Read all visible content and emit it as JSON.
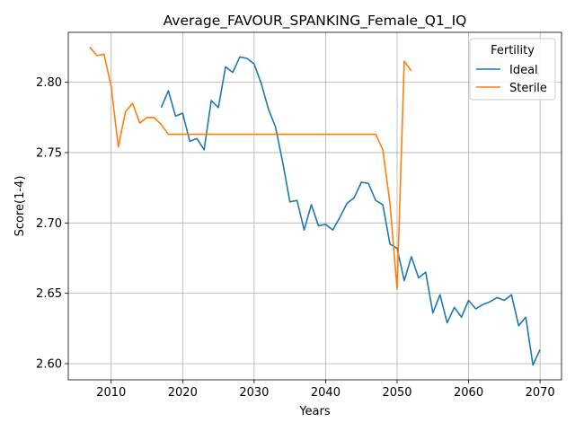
{
  "chart_data": {
    "type": "line",
    "title": "Average_FAVOUR_SPANKING_Female_Q1_IQ",
    "xlabel": "Years",
    "ylabel": "Score(1-4)",
    "xlim": [
      2004,
      2073
    ],
    "ylim": [
      2.5885,
      2.8355
    ],
    "xticks": [
      2010,
      2020,
      2030,
      2040,
      2050,
      2060,
      2070
    ],
    "yticks": [
      2.6,
      2.65,
      2.7,
      2.75,
      2.8
    ],
    "xtick_labels": [
      "2010",
      "2020",
      "2030",
      "2040",
      "2050",
      "2060",
      "2070"
    ],
    "ytick_labels": [
      "2.60",
      "2.65",
      "2.70",
      "2.75",
      "2.80"
    ],
    "grid": true,
    "legend": {
      "title": "Fertility",
      "position": "top-right"
    },
    "series": [
      {
        "name": "Ideal",
        "color": "#1f77b4",
        "x": [
          2017,
          2018,
          2019,
          2020,
          2021,
          2022,
          2023,
          2024,
          2025,
          2026,
          2027,
          2028,
          2029,
          2030,
          2031,
          2032,
          2033,
          2034,
          2035,
          2036,
          2037,
          2038,
          2039,
          2040,
          2041,
          2042,
          2043,
          2044,
          2045,
          2046,
          2047,
          2048,
          2049,
          2050,
          2051,
          2052,
          2053,
          2054,
          2055,
          2056,
          2057,
          2058,
          2059,
          2060,
          2061,
          2062,
          2063,
          2064,
          2065,
          2066,
          2067,
          2068,
          2069,
          2070
        ],
        "y": [
          2.782,
          2.794,
          2.776,
          2.778,
          2.758,
          2.76,
          2.752,
          2.787,
          2.782,
          2.811,
          2.807,
          2.818,
          2.817,
          2.813,
          2.799,
          2.781,
          2.768,
          2.743,
          2.715,
          2.716,
          2.695,
          2.713,
          2.698,
          2.699,
          2.695,
          2.704,
          2.714,
          2.718,
          2.729,
          2.728,
          2.716,
          2.713,
          2.685,
          2.682,
          2.659,
          2.676,
          2.661,
          2.665,
          2.636,
          2.649,
          2.629,
          2.64,
          2.633,
          2.645,
          2.639,
          2.642,
          2.644,
          2.647,
          2.645,
          2.649,
          2.627,
          2.633,
          2.599,
          2.61
        ]
      },
      {
        "name": "Sterile",
        "color": "#ff7f0e",
        "x": [
          2007,
          2008,
          2009,
          2010,
          2011,
          2012,
          2013,
          2014,
          2015,
          2016,
          2017,
          2018,
          2019,
          2020,
          2021,
          2022,
          2023,
          2024,
          2025,
          2026,
          2027,
          2028,
          2029,
          2030,
          2031,
          2032,
          2033,
          2034,
          2035,
          2036,
          2037,
          2038,
          2039,
          2040,
          2041,
          2042,
          2043,
          2044,
          2045,
          2046,
          2047,
          2048,
          2049,
          2050,
          2051,
          2052
        ],
        "y": [
          2.825,
          2.819,
          2.82,
          2.797,
          2.754,
          2.779,
          2.785,
          2.771,
          2.775,
          2.775,
          2.77,
          2.763,
          2.763,
          2.763,
          2.763,
          2.763,
          2.763,
          2.763,
          2.763,
          2.763,
          2.763,
          2.763,
          2.763,
          2.763,
          2.763,
          2.763,
          2.763,
          2.763,
          2.763,
          2.763,
          2.763,
          2.763,
          2.763,
          2.763,
          2.763,
          2.763,
          2.763,
          2.763,
          2.763,
          2.763,
          2.763,
          2.752,
          2.714,
          2.653,
          2.815,
          2.808
        ]
      }
    ]
  }
}
